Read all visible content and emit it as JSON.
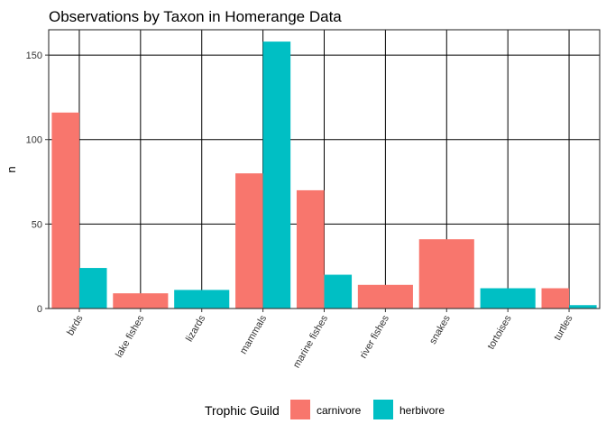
{
  "chart_data": {
    "type": "bar",
    "title": "Observations by Taxon in Homerange Data",
    "xlabel": "",
    "ylabel": "n",
    "categories": [
      "birds",
      "lake fishes",
      "lizards",
      "mammals",
      "marine fishes",
      "river fishes",
      "snakes",
      "tortoises",
      "turtles"
    ],
    "series": [
      {
        "name": "carnivore",
        "color": "#F8766D",
        "values": [
          116,
          9,
          null,
          80,
          70,
          14,
          41,
          null,
          12
        ]
      },
      {
        "name": "herbivore",
        "color": "#00BFC4",
        "values": [
          24,
          null,
          11,
          158,
          20,
          null,
          null,
          12,
          2
        ]
      }
    ],
    "ylim": [
      0,
      165
    ],
    "yticks": [
      0,
      50,
      100,
      150
    ],
    "grid": true,
    "legend": {
      "title": "Trophic Guild",
      "position": "bottom"
    }
  }
}
